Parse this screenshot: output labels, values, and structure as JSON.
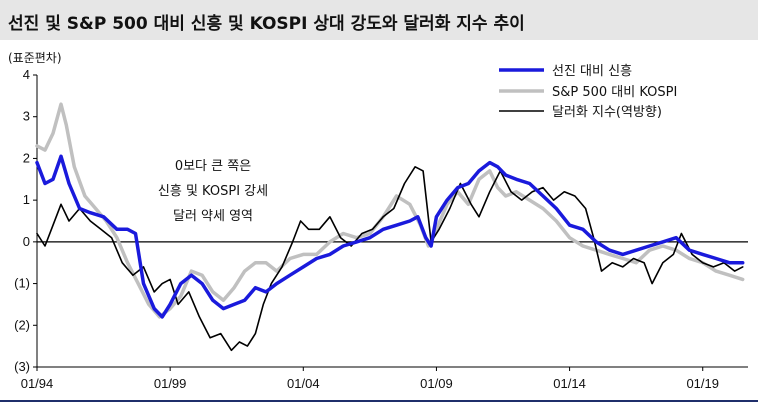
{
  "title": "선진 및 S&P 500 대비 신흥 및 KOSPI 상대 강도와 달러화 지수 추이",
  "chart_data": {
    "type": "line",
    "unit_label": "(표준편차)",
    "ylim": [
      -3,
      4
    ],
    "yticks": [
      4,
      3,
      2,
      1,
      0,
      -1,
      -2,
      -3
    ],
    "ytick_labels": [
      "4",
      "3",
      "2",
      "1",
      "0",
      "(1)",
      "(2)",
      "(3)"
    ],
    "xlim": [
      1994.0,
      2020.7
    ],
    "xticks": [
      1994,
      1999,
      2004,
      2009,
      2014,
      2019
    ],
    "xtick_labels": [
      "01/94",
      "01/99",
      "01/04",
      "01/09",
      "01/14",
      "01/19"
    ],
    "annotation": [
      "0보다 큰 쪽은",
      "신흥 및 KOSPI 강세",
      "달러 약세 영역"
    ],
    "legend_position": "top-right",
    "series": [
      {
        "name": "선진 대비 신흥",
        "color": "#1a1adc",
        "width": 3.5,
        "values": [
          [
            1994.0,
            1.9
          ],
          [
            1994.3,
            1.4
          ],
          [
            1994.6,
            1.5
          ],
          [
            1994.9,
            2.05
          ],
          [
            1995.2,
            1.4
          ],
          [
            1995.6,
            0.8
          ],
          [
            1996.0,
            0.7
          ],
          [
            1996.5,
            0.6
          ],
          [
            1997.0,
            0.3
          ],
          [
            1997.4,
            0.3
          ],
          [
            1997.7,
            0.2
          ],
          [
            1998.0,
            -1.0
          ],
          [
            1998.4,
            -1.6
          ],
          [
            1998.7,
            -1.8
          ],
          [
            1999.0,
            -1.5
          ],
          [
            1999.4,
            -1.0
          ],
          [
            1999.8,
            -0.8
          ],
          [
            2000.2,
            -1.0
          ],
          [
            2000.6,
            -1.4
          ],
          [
            2001.0,
            -1.6
          ],
          [
            2001.4,
            -1.5
          ],
          [
            2001.8,
            -1.4
          ],
          [
            2002.2,
            -1.1
          ],
          [
            2002.6,
            -1.2
          ],
          [
            2003.0,
            -1.0
          ],
          [
            2003.5,
            -0.8
          ],
          [
            2004.0,
            -0.6
          ],
          [
            2004.5,
            -0.4
          ],
          [
            2005.0,
            -0.3
          ],
          [
            2005.5,
            -0.1
          ],
          [
            2006.0,
            0.0
          ],
          [
            2006.5,
            0.1
          ],
          [
            2007.0,
            0.3
          ],
          [
            2007.5,
            0.4
          ],
          [
            2008.0,
            0.5
          ],
          [
            2008.3,
            0.6
          ],
          [
            2008.6,
            0.1
          ],
          [
            2008.8,
            -0.1
          ],
          [
            2009.0,
            0.6
          ],
          [
            2009.4,
            1.0
          ],
          [
            2009.8,
            1.3
          ],
          [
            2010.2,
            1.4
          ],
          [
            2010.6,
            1.7
          ],
          [
            2011.0,
            1.9
          ],
          [
            2011.3,
            1.8
          ],
          [
            2011.6,
            1.6
          ],
          [
            2012.0,
            1.5
          ],
          [
            2012.5,
            1.4
          ],
          [
            2013.0,
            1.1
          ],
          [
            2013.5,
            0.8
          ],
          [
            2014.0,
            0.4
          ],
          [
            2014.5,
            0.3
          ],
          [
            2015.0,
            0.0
          ],
          [
            2015.5,
            -0.2
          ],
          [
            2016.0,
            -0.3
          ],
          [
            2016.5,
            -0.2
          ],
          [
            2017.0,
            -0.1
          ],
          [
            2017.5,
            0.0
          ],
          [
            2018.0,
            0.1
          ],
          [
            2018.5,
            -0.2
          ],
          [
            2019.0,
            -0.3
          ],
          [
            2019.5,
            -0.4
          ],
          [
            2020.0,
            -0.5
          ],
          [
            2020.5,
            -0.5
          ]
        ]
      },
      {
        "name": "S&P 500 대비 KOSPI",
        "color": "#c0c0c0",
        "width": 3.5,
        "values": [
          [
            1994.0,
            2.3
          ],
          [
            1994.3,
            2.2
          ],
          [
            1994.6,
            2.6
          ],
          [
            1994.9,
            3.3
          ],
          [
            1995.1,
            2.8
          ],
          [
            1995.4,
            1.8
          ],
          [
            1995.8,
            1.1
          ],
          [
            1996.2,
            0.8
          ],
          [
            1996.6,
            0.5
          ],
          [
            1997.0,
            0.1
          ],
          [
            1997.4,
            -0.5
          ],
          [
            1997.8,
            -1.0
          ],
          [
            1998.2,
            -1.5
          ],
          [
            1998.6,
            -1.8
          ],
          [
            1999.0,
            -1.6
          ],
          [
            1999.4,
            -1.3
          ],
          [
            1999.8,
            -0.7
          ],
          [
            2000.2,
            -0.8
          ],
          [
            2000.6,
            -1.2
          ],
          [
            2001.0,
            -1.4
          ],
          [
            2001.4,
            -1.1
          ],
          [
            2001.8,
            -0.7
          ],
          [
            2002.2,
            -0.5
          ],
          [
            2002.6,
            -0.5
          ],
          [
            2003.0,
            -0.7
          ],
          [
            2003.5,
            -0.4
          ],
          [
            2004.0,
            -0.3
          ],
          [
            2004.5,
            -0.3
          ],
          [
            2005.0,
            0.0
          ],
          [
            2005.5,
            0.2
          ],
          [
            2006.0,
            0.1
          ],
          [
            2006.5,
            0.2
          ],
          [
            2007.0,
            0.6
          ],
          [
            2007.5,
            1.1
          ],
          [
            2008.0,
            0.9
          ],
          [
            2008.4,
            0.4
          ],
          [
            2008.7,
            -0.1
          ],
          [
            2009.0,
            0.3
          ],
          [
            2009.4,
            0.9
          ],
          [
            2009.8,
            1.2
          ],
          [
            2010.2,
            0.9
          ],
          [
            2010.6,
            1.5
          ],
          [
            2011.0,
            1.7
          ],
          [
            2011.3,
            1.3
          ],
          [
            2011.6,
            1.1
          ],
          [
            2012.0,
            1.2
          ],
          [
            2012.5,
            1.0
          ],
          [
            2013.0,
            0.8
          ],
          [
            2013.5,
            0.5
          ],
          [
            2014.0,
            0.1
          ],
          [
            2014.5,
            -0.1
          ],
          [
            2015.0,
            -0.2
          ],
          [
            2015.5,
            -0.3
          ],
          [
            2016.0,
            -0.4
          ],
          [
            2016.5,
            -0.5
          ],
          [
            2017.0,
            -0.2
          ],
          [
            2017.5,
            -0.1
          ],
          [
            2018.0,
            -0.2
          ],
          [
            2018.5,
            -0.4
          ],
          [
            2019.0,
            -0.5
          ],
          [
            2019.5,
            -0.7
          ],
          [
            2020.0,
            -0.8
          ],
          [
            2020.5,
            -0.9
          ]
        ]
      },
      {
        "name": "달러화 지수(역방향)",
        "color": "#000000",
        "width": 1.6,
        "values": [
          [
            1994.0,
            0.2
          ],
          [
            1994.3,
            -0.1
          ],
          [
            1994.6,
            0.4
          ],
          [
            1994.9,
            0.9
          ],
          [
            1995.2,
            0.5
          ],
          [
            1995.6,
            0.8
          ],
          [
            1996.0,
            0.5
          ],
          [
            1996.4,
            0.3
          ],
          [
            1996.8,
            0.1
          ],
          [
            1997.2,
            -0.5
          ],
          [
            1997.6,
            -0.8
          ],
          [
            1998.0,
            -0.6
          ],
          [
            1998.4,
            -1.2
          ],
          [
            1998.7,
            -1.0
          ],
          [
            1999.0,
            -0.9
          ],
          [
            1999.3,
            -1.5
          ],
          [
            1999.7,
            -1.2
          ],
          [
            2000.1,
            -1.8
          ],
          [
            2000.5,
            -2.3
          ],
          [
            2000.9,
            -2.2
          ],
          [
            2001.3,
            -2.6
          ],
          [
            2001.6,
            -2.4
          ],
          [
            2001.9,
            -2.5
          ],
          [
            2002.2,
            -2.2
          ],
          [
            2002.5,
            -1.5
          ],
          [
            2002.8,
            -1.0
          ],
          [
            2003.2,
            -0.6
          ],
          [
            2003.6,
            0.0
          ],
          [
            2003.9,
            0.5
          ],
          [
            2004.2,
            0.3
          ],
          [
            2004.6,
            0.3
          ],
          [
            2005.0,
            0.6
          ],
          [
            2005.4,
            0.1
          ],
          [
            2005.8,
            -0.1
          ],
          [
            2006.2,
            0.2
          ],
          [
            2006.6,
            0.3
          ],
          [
            2007.0,
            0.6
          ],
          [
            2007.4,
            0.8
          ],
          [
            2007.8,
            1.4
          ],
          [
            2008.2,
            1.8
          ],
          [
            2008.5,
            1.7
          ],
          [
            2008.8,
            0.0
          ],
          [
            2009.1,
            0.3
          ],
          [
            2009.5,
            0.8
          ],
          [
            2009.9,
            1.4
          ],
          [
            2010.3,
            0.9
          ],
          [
            2010.6,
            0.6
          ],
          [
            2011.0,
            1.2
          ],
          [
            2011.4,
            1.7
          ],
          [
            2011.8,
            1.2
          ],
          [
            2012.2,
            1.0
          ],
          [
            2012.6,
            1.2
          ],
          [
            2013.0,
            1.3
          ],
          [
            2013.4,
            1.0
          ],
          [
            2013.8,
            1.2
          ],
          [
            2014.2,
            1.1
          ],
          [
            2014.6,
            0.8
          ],
          [
            2014.9,
            0.1
          ],
          [
            2015.2,
            -0.7
          ],
          [
            2015.6,
            -0.5
          ],
          [
            2016.0,
            -0.6
          ],
          [
            2016.4,
            -0.4
          ],
          [
            2016.8,
            -0.5
          ],
          [
            2017.1,
            -1.0
          ],
          [
            2017.5,
            -0.5
          ],
          [
            2017.9,
            -0.3
          ],
          [
            2018.2,
            0.2
          ],
          [
            2018.6,
            -0.3
          ],
          [
            2019.0,
            -0.5
          ],
          [
            2019.4,
            -0.6
          ],
          [
            2019.8,
            -0.5
          ],
          [
            2020.2,
            -0.7
          ],
          [
            2020.5,
            -0.6
          ]
        ]
      }
    ]
  }
}
